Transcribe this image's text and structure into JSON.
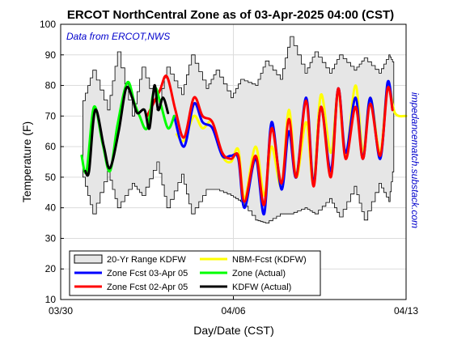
{
  "chart_data": {
    "type": "line",
    "title": "ERCOT NorthCentral Zone as of 03-Apr-2025 04:00 (CST)",
    "annotation": "Data from ERCOT,NWS",
    "side_text": "impedancematch.substack.com",
    "xlabel": "Day/Date (CST)",
    "ylabel": "Temperature (F)",
    "xlim": [
      0,
      14
    ],
    "ylim": [
      10,
      100
    ],
    "x_unit": "days since 03/30",
    "xticks": [
      {
        "x": 0,
        "label": "03/30"
      },
      {
        "x": 7,
        "label": "04/06"
      },
      {
        "x": 14,
        "label": "04/13"
      }
    ],
    "yticks": [
      10,
      20,
      30,
      40,
      50,
      60,
      70,
      80,
      90,
      100
    ],
    "grid": true,
    "legend_position": "bottom-left",
    "colors": {
      "band_fill": "#e6e6e6",
      "nbm": "#ffff00",
      "zone_fcst_0403": "#0000ff",
      "zone_actual": "#00ff00",
      "zone_fcst_0402": "#ff0000",
      "kdfw_actual": "#000000"
    },
    "band": {
      "name": "20-Yr Range KDFW",
      "x": [
        0.9,
        1.3,
        1.9,
        2.3,
        2.9,
        3.3,
        3.9,
        4.3,
        4.9,
        5.3,
        5.9,
        6.3,
        6.9,
        7.3,
        7.9,
        8.3,
        8.9,
        9.3,
        9.9,
        10.3,
        10.9,
        11.3,
        11.9,
        12.3,
        12.9,
        13.3,
        13.5
      ],
      "upper": [
        75,
        85,
        72,
        91,
        70,
        86,
        72,
        86,
        77,
        90,
        79,
        85,
        76,
        82,
        80,
        88,
        82,
        96,
        84,
        91,
        84,
        90,
        85,
        89,
        84,
        90,
        87
      ],
      "lower": [
        50,
        38,
        52,
        40,
        48,
        44,
        55,
        40,
        51,
        38,
        46,
        46,
        44,
        42,
        36,
        35,
        38,
        38,
        40,
        38,
        43,
        37,
        47,
        36,
        48,
        42,
        55
      ]
    },
    "series": [
      {
        "name": "NBM-Fcst (KDFW)",
        "x": [
          4.7,
          5.0,
          5.4,
          5.75,
          6.15,
          6.55,
          6.9,
          7.2,
          7.45,
          7.9,
          8.25,
          8.55,
          8.95,
          9.25,
          9.55,
          9.95,
          10.25,
          10.55,
          10.95,
          11.25,
          11.55,
          11.95,
          12.25,
          12.55,
          12.95,
          13.25,
          13.55,
          14.0
        ],
        "y": [
          64,
          62,
          70,
          66,
          68,
          57,
          55,
          59,
          43,
          60,
          44,
          60,
          47,
          72,
          50,
          68,
          48,
          77,
          58,
          78,
          57,
          80,
          58,
          76,
          58,
          80,
          71,
          70
        ]
      },
      {
        "name": "Zone Fcst 03-Apr 05",
        "x": [
          4.6,
          5.0,
          5.4,
          5.75,
          6.15,
          6.55,
          6.9,
          7.2,
          7.45,
          7.9,
          8.25,
          8.55,
          8.95,
          9.25,
          9.55,
          9.95,
          10.25,
          10.55,
          10.95,
          11.25,
          11.55,
          11.95,
          12.25,
          12.55,
          12.95,
          13.25,
          13.45
        ],
        "y": [
          70,
          60,
          74,
          68,
          66,
          57,
          57,
          56,
          40,
          56,
          38,
          68,
          46,
          65,
          50,
          76,
          48,
          73,
          52,
          79,
          58,
          76,
          56,
          76,
          56,
          81,
          72
        ]
      },
      {
        "name": "Zone Fcst 02-Apr 05",
        "x": [
          3.5,
          4.0,
          4.3,
          4.65,
          5.0,
          5.4,
          5.75,
          6.15,
          6.55,
          6.9,
          7.2,
          7.45,
          7.9,
          8.25,
          8.55,
          8.95,
          9.25,
          9.55,
          9.95,
          10.25,
          10.55,
          10.95,
          11.25,
          11.55,
          11.95,
          12.25,
          12.55,
          12.95,
          13.25,
          13.45
        ],
        "y": [
          70,
          78,
          83,
          72,
          63,
          76,
          70,
          68,
          58,
          56,
          57,
          42,
          57,
          41,
          66,
          48,
          69,
          50,
          75,
          47,
          73,
          50,
          79,
          56,
          73,
          56,
          74,
          57,
          79,
          72
        ]
      },
      {
        "name": "Zone (Actual)",
        "x": [
          0.85,
          1.05,
          1.35,
          1.7,
          2.0,
          2.3,
          2.7,
          3.0,
          3.2,
          3.5,
          3.8,
          4.05,
          4.35,
          4.6
        ],
        "y": [
          57,
          52,
          73,
          61,
          52,
          67,
          81,
          74,
          70,
          66,
          79,
          74,
          66,
          70
        ]
      },
      {
        "name": "KDFW (Actual)",
        "x": [
          1.0,
          1.15,
          1.4,
          1.75,
          2.0,
          2.35,
          2.65,
          2.9,
          3.1,
          3.4,
          3.6,
          3.8,
          3.95,
          4.15,
          4.35
        ],
        "y": [
          52,
          52,
          72,
          60,
          53,
          65,
          79,
          76,
          71,
          72,
          66,
          80,
          72,
          76,
          71
        ]
      }
    ],
    "legend_entries": [
      {
        "label": "20-Yr Range KDFW",
        "kind": "band"
      },
      {
        "label": "NBM-Fcst (KDFW)",
        "kind": "nbm"
      },
      {
        "label": "Zone Fcst 03-Apr 05",
        "kind": "zone_fcst_0403"
      },
      {
        "label": "Zone (Actual)",
        "kind": "zone_actual"
      },
      {
        "label": "Zone Fcst 02-Apr 05",
        "kind": "zone_fcst_0402"
      },
      {
        "label": "KDFW (Actual)",
        "kind": "kdfw_actual"
      }
    ]
  }
}
